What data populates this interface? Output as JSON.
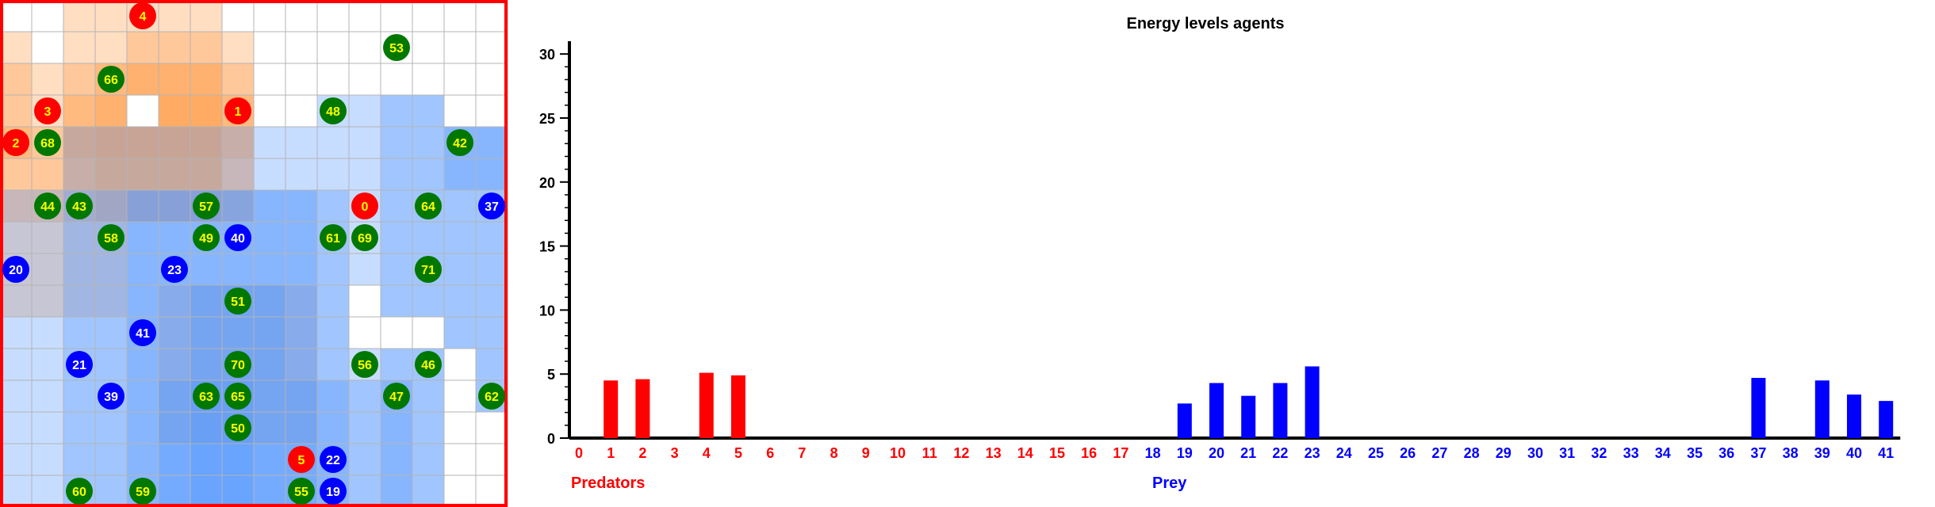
{
  "colors": {
    "predator": "#ff0000",
    "prey": "#0000ff",
    "food": "#007800",
    "agent_text_light": "#ffffff",
    "agent_text_food": "#ffff00",
    "axis": "#000000",
    "grid_line": "#b4b4b4",
    "border": "#ff0000",
    "territory_predator": "#ffa050",
    "territory_prey": "#5096ff"
  },
  "grid": {
    "rows": 16,
    "cols": 16,
    "predators": [
      {
        "id": "0",
        "row": 6,
        "col": 11
      },
      {
        "id": "1",
        "row": 3,
        "col": 7
      },
      {
        "id": "2",
        "row": 4,
        "col": 0
      },
      {
        "id": "3",
        "row": 3,
        "col": 1
      },
      {
        "id": "4",
        "row": 0,
        "col": 4
      },
      {
        "id": "5",
        "row": 14,
        "col": 9
      }
    ],
    "prey": [
      {
        "id": "19",
        "row": 15,
        "col": 10
      },
      {
        "id": "20",
        "row": 8,
        "col": 0
      },
      {
        "id": "21",
        "row": 11,
        "col": 2
      },
      {
        "id": "22",
        "row": 14,
        "col": 10
      },
      {
        "id": "23",
        "row": 8,
        "col": 5
      },
      {
        "id": "37",
        "row": 6,
        "col": 15
      },
      {
        "id": "39",
        "row": 12,
        "col": 3
      },
      {
        "id": "40",
        "row": 7,
        "col": 7
      },
      {
        "id": "41",
        "row": 10,
        "col": 4
      }
    ],
    "food": [
      {
        "id": "42",
        "row": 4,
        "col": 14
      },
      {
        "id": "43",
        "row": 6,
        "col": 2
      },
      {
        "id": "44",
        "row": 6,
        "col": 1
      },
      {
        "id": "46",
        "row": 11,
        "col": 13
      },
      {
        "id": "47",
        "row": 12,
        "col": 12
      },
      {
        "id": "48",
        "row": 3,
        "col": 10
      },
      {
        "id": "49",
        "row": 7,
        "col": 6
      },
      {
        "id": "50",
        "row": 13,
        "col": 7
      },
      {
        "id": "51",
        "row": 9,
        "col": 7
      },
      {
        "id": "53",
        "row": 1,
        "col": 12
      },
      {
        "id": "55",
        "row": 15,
        "col": 9
      },
      {
        "id": "56",
        "row": 11,
        "col": 11
      },
      {
        "id": "57",
        "row": 6,
        "col": 6
      },
      {
        "id": "58",
        "row": 7,
        "col": 3
      },
      {
        "id": "59",
        "row": 15,
        "col": 4
      },
      {
        "id": "60",
        "row": 15,
        "col": 2
      },
      {
        "id": "61",
        "row": 7,
        "col": 10
      },
      {
        "id": "62",
        "row": 12,
        "col": 15
      },
      {
        "id": "63",
        "row": 12,
        "col": 6
      },
      {
        "id": "64",
        "row": 6,
        "col": 13
      },
      {
        "id": "65",
        "row": 12,
        "col": 7
      },
      {
        "id": "66",
        "row": 2,
        "col": 3
      },
      {
        "id": "68",
        "row": 4,
        "col": 1
      },
      {
        "id": "69",
        "row": 7,
        "col": 11
      },
      {
        "id": "70",
        "row": 11,
        "col": 7
      },
      {
        "id": "71",
        "row": 8,
        "col": 13
      }
    ]
  },
  "chart_data": {
    "type": "bar",
    "title": "Energy levels agents",
    "ylim": [
      0,
      31
    ],
    "y_ticks": [
      "0",
      "5",
      "10",
      "15",
      "20",
      "25",
      "30"
    ],
    "categories": [
      "0",
      "1",
      "2",
      "3",
      "4",
      "5",
      "6",
      "7",
      "8",
      "9",
      "10",
      "11",
      "12",
      "13",
      "14",
      "15",
      "16",
      "17",
      "18",
      "19",
      "20",
      "21",
      "22",
      "23",
      "24",
      "25",
      "26",
      "27",
      "28",
      "29",
      "30",
      "31",
      "32",
      "33",
      "34",
      "35",
      "36",
      "37",
      "38",
      "39",
      "40",
      "41"
    ],
    "values": [
      0,
      4.5,
      4.6,
      0,
      5.1,
      4.9,
      0,
      0,
      0,
      0,
      0,
      0,
      0,
      0,
      0,
      0,
      0,
      0,
      0,
      2.7,
      4.3,
      3.3,
      4.3,
      5.6,
      0,
      0,
      0,
      0,
      0,
      0,
      0,
      0,
      0,
      0,
      0,
      0,
      0,
      4.7,
      0,
      4.5,
      3.4,
      2.9
    ],
    "predator_count": 18,
    "groups": {
      "predators_label": "Predators",
      "prey_label": "Prey"
    }
  }
}
